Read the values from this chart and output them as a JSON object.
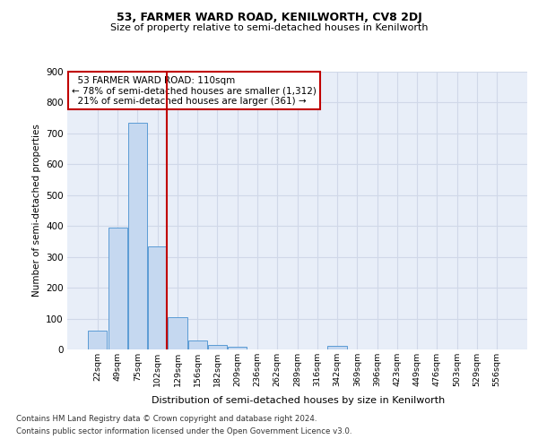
{
  "title1": "53, FARMER WARD ROAD, KENILWORTH, CV8 2DJ",
  "title2": "Size of property relative to semi-detached houses in Kenilworth",
  "xlabel": "Distribution of semi-detached houses by size in Kenilworth",
  "ylabel": "Number of semi-detached properties",
  "categories": [
    "22sqm",
    "49sqm",
    "75sqm",
    "102sqm",
    "129sqm",
    "156sqm",
    "182sqm",
    "209sqm",
    "236sqm",
    "262sqm",
    "289sqm",
    "316sqm",
    "342sqm",
    "369sqm",
    "396sqm",
    "423sqm",
    "449sqm",
    "476sqm",
    "503sqm",
    "529sqm",
    "556sqm"
  ],
  "values": [
    62,
    396,
    735,
    335,
    105,
    28,
    15,
    10,
    0,
    0,
    0,
    0,
    12,
    0,
    0,
    0,
    0,
    0,
    0,
    0,
    0
  ],
  "bar_color": "#c5d8f0",
  "bar_edge_color": "#5b9bd5",
  "property_label": "53 FARMER WARD ROAD: 110sqm",
  "pct_smaller": 78,
  "n_smaller": 1312,
  "pct_larger": 21,
  "n_larger": 361,
  "vline_color": "#c00000",
  "annotation_box_color": "#c00000",
  "grid_color": "#d0d8e8",
  "background_color": "#e8eef8",
  "ylim": [
    0,
    900
  ],
  "yticks": [
    0,
    100,
    200,
    300,
    400,
    500,
    600,
    700,
    800,
    900
  ],
  "vline_x": 3.48,
  "footnote1": "Contains HM Land Registry data © Crown copyright and database right 2024.",
  "footnote2": "Contains public sector information licensed under the Open Government Licence v3.0."
}
